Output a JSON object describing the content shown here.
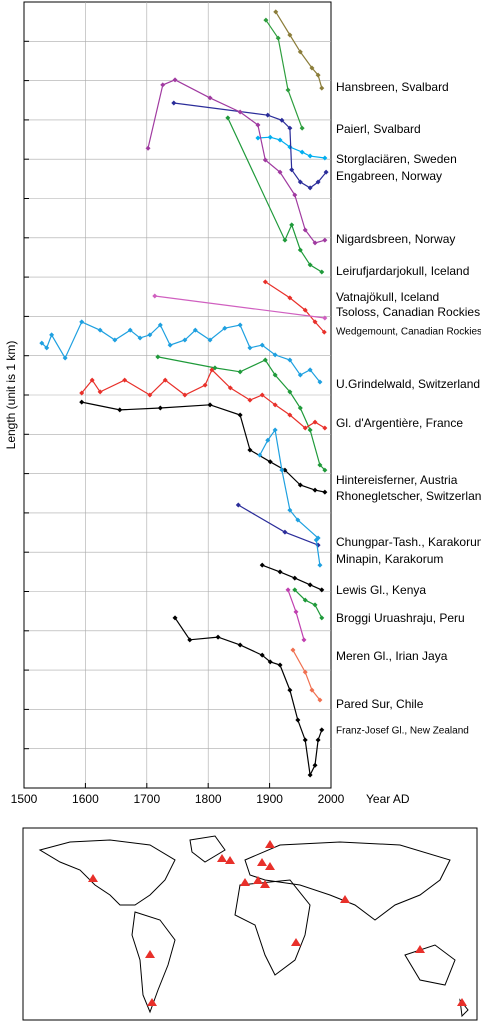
{
  "chart_data": {
    "type": "line",
    "xlabel": "Year AD",
    "ylabel": "Length (unit is 1 km)",
    "xlim": [
      1500,
      2000
    ],
    "xticks": [
      1500,
      1600,
      1700,
      1800,
      1900,
      2000
    ],
    "ylim": [
      0,
      20
    ],
    "yticks": [
      1,
      2,
      3,
      4,
      5,
      6,
      7,
      8,
      9,
      10,
      11,
      12,
      13,
      14,
      15,
      16,
      17,
      18,
      19
    ],
    "grid": true,
    "series": [
      {
        "name": "Hansbreen, Svalbard",
        "color": "#8b7d3a",
        "x": [
          1910,
          1933,
          1950,
          1969,
          1979,
          1985
        ],
        "values": [
          19.75,
          19.16,
          18.73,
          18.32,
          18.14,
          17.81
        ]
      },
      {
        "name": "Paierl, Svalbard",
        "color": "#2e9e3e",
        "x": [
          1894,
          1914,
          1930,
          1953
        ],
        "values": [
          19.54,
          19.08,
          17.76,
          16.79
        ]
      },
      {
        "name": "Storglaciären, Sweden",
        "color": "#00aeef",
        "x": [
          1881,
          1901,
          1917,
          1933,
          1953,
          1966,
          1990
        ],
        "values": [
          16.54,
          16.56,
          16.49,
          16.31,
          16.18,
          16.08,
          16.03
        ]
      },
      {
        "name": "Engabreen, Norway",
        "color": "#2b2d9a",
        "x": [
          1744,
          1897,
          1920,
          1933,
          1936,
          1950,
          1966,
          1979,
          1992
        ],
        "values": [
          17.43,
          17.12,
          16.99,
          16.79,
          15.73,
          15.42,
          15.27,
          15.42,
          15.67
        ]
      },
      {
        "name": "Nigardsbreen, Norway",
        "color": "#a03aa0",
        "x": [
          1702,
          1726,
          1746,
          1803,
          1852,
          1881,
          1893,
          1917,
          1941,
          1958,
          1974,
          1990
        ],
        "values": [
          16.28,
          17.89,
          18.02,
          17.56,
          17.2,
          16.87,
          15.98,
          15.67,
          15.09,
          14.2,
          13.87,
          13.94
        ]
      },
      {
        "name": "Leirufjardarjokull, Iceland",
        "color": "#1f9a3a",
        "x": [
          1832,
          1925,
          1936,
          1950,
          1966,
          1985
        ],
        "values": [
          17.05,
          13.94,
          14.33,
          13.69,
          13.31,
          13.13
        ]
      },
      {
        "name": "Vatnajökull, Iceland",
        "color": "#e8302a",
        "x": [
          1893,
          1933,
          1958,
          1974,
          1989
        ],
        "values": [
          12.88,
          12.47,
          12.16,
          11.86,
          11.6
        ]
      },
      {
        "name": "Tsoloss, Canadian Rockies",
        "color": "#d060c0",
        "x": [
          1713,
          1990
        ],
        "values": [
          12.52,
          11.96
        ]
      },
      {
        "name": "Wedgemount, Canadian Rockies",
        "color": "#1ea0e0",
        "x": [
          1529,
          1537,
          1545,
          1567,
          1594,
          1624,
          1648,
          1673,
          1689,
          1705,
          1722,
          1738,
          1762,
          1779,
          1803,
          1827,
          1852,
          1868,
          1888,
          1909,
          1933,
          1950,
          1966,
          1982
        ],
        "values": [
          11.32,
          11.2,
          11.53,
          10.94,
          11.86,
          11.65,
          11.4,
          11.65,
          11.45,
          11.53,
          11.78,
          11.27,
          11.4,
          11.65,
          11.4,
          11.7,
          11.78,
          11.2,
          11.27,
          11.02,
          10.89,
          10.51,
          10.64,
          10.33
        ]
      },
      {
        "name": "U.Grindelwald, Switzerland",
        "color": "#1f9a3a",
        "x": [
          1718,
          1811,
          1852,
          1893,
          1909,
          1933,
          1950,
          1966,
          1982,
          1990
        ],
        "values": [
          10.97,
          10.69,
          10.59,
          10.89,
          10.51,
          10.08,
          9.67,
          9.11,
          8.22,
          8.09
        ]
      },
      {
        "name": "Gl. d'Argentière, France",
        "color": "#e8302a",
        "x": [
          1594,
          1611,
          1624,
          1664,
          1705,
          1730,
          1762,
          1795,
          1806,
          1836,
          1868,
          1888,
          1909,
          1933,
          1958,
          1974,
          1990
        ],
        "values": [
          10.05,
          10.38,
          10.08,
          10.38,
          10.0,
          10.38,
          10.0,
          10.25,
          10.64,
          10.18,
          9.87,
          10.0,
          9.75,
          9.49,
          9.16,
          9.31,
          9.16
        ]
      },
      {
        "name": "Hintereisferner, Austria",
        "color": "#000000",
        "x": [
          1594,
          1656,
          1722,
          1803,
          1852,
          1868,
          1901,
          1925,
          1950,
          1974,
          1990
        ],
        "values": [
          9.82,
          9.62,
          9.67,
          9.75,
          9.49,
          8.6,
          8.3,
          8.09,
          7.71,
          7.58,
          7.53
        ]
      },
      {
        "name": "Rhonegletscher, Switzerland",
        "color": "#1ea0e0",
        "x": [
          1884,
          1897,
          1909,
          1920,
          1933,
          1946,
          1979
        ],
        "values": [
          8.47,
          8.85,
          9.11,
          8.09,
          7.07,
          6.82,
          6.36
        ]
      },
      {
        "name": "Chungpar-Tash., Karakorum",
        "color": "#2b2d9a",
        "x": [
          1849,
          1925,
          1979
        ],
        "values": [
          7.2,
          6.51,
          6.18
        ]
      },
      {
        "name": "Minapin, Karakorum",
        "color": "#1ea0e0",
        "x": [
          1976,
          1982
        ],
        "values": [
          6.31,
          5.67
        ]
      },
      {
        "name": "Lewis Gl., Kenya",
        "color": "#000000",
        "x": [
          1888,
          1917,
          1941,
          1966,
          1985
        ],
        "values": [
          5.67,
          5.5,
          5.34,
          5.17,
          5.04
        ]
      },
      {
        "name": "Broggi Uruashraju, Peru",
        "color": "#1f9a3a",
        "x": [
          1941,
          1958,
          1974,
          1985
        ],
        "values": [
          5.04,
          4.78,
          4.66,
          4.33
        ]
      },
      {
        "name": "Meren Gl., Irian Jaya",
        "color": "#c040b0",
        "x": [
          1930,
          1943,
          1956
        ],
        "values": [
          5.04,
          4.48,
          3.77
        ]
      },
      {
        "name": "Pared Sur, Chile",
        "color": "#f07050",
        "x": [
          1938,
          1958,
          1969,
          1982
        ],
        "values": [
          3.51,
          2.95,
          2.49,
          2.24
        ]
      },
      {
        "name": "Franz-Josef Gl., New Zealand",
        "color": "#000000",
        "x": [
          1746,
          1770,
          1816,
          1852,
          1888,
          1901,
          1917,
          1933,
          1946,
          1958,
          1966,
          1974,
          1979,
          1985
        ],
        "values": [
          4.33,
          3.77,
          3.84,
          3.64,
          3.38,
          3.21,
          3.13,
          2.49,
          1.73,
          1.22,
          0.33,
          0.58,
          1.22,
          1.48
        ]
      }
    ]
  }
}
